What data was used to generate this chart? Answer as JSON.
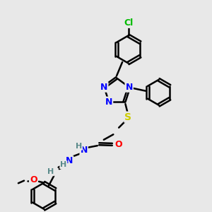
{
  "bg_color": "#e8e8e8",
  "atom_colors": {
    "C": "#000000",
    "N": "#0000ff",
    "O": "#ff0000",
    "S": "#cccc00",
    "Cl": "#00bb00",
    "H": "#5a8a8a"
  },
  "bond_color": "#000000",
  "bond_width": 1.8,
  "figsize": [
    3.0,
    3.0
  ],
  "dpi": 100
}
